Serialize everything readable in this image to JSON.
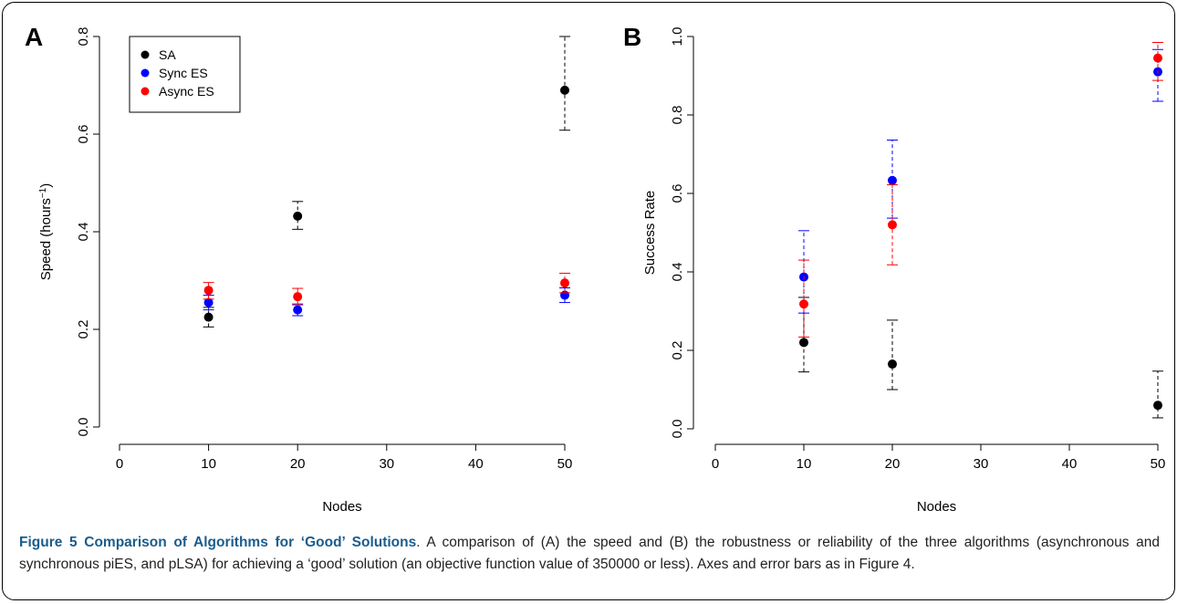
{
  "panels": {
    "a_label": "A",
    "b_label": "B"
  },
  "chart_data": [
    {
      "type": "scatter",
      "panel": "A",
      "xlabel": "Nodes",
      "ylabel_base": "Speed (hours",
      "ylabel_sup": "−1",
      "ylabel_end": ")",
      "xlim": [
        0,
        50
      ],
      "ylim": [
        0,
        0.8
      ],
      "xticks": [
        0,
        10,
        20,
        30,
        40,
        50
      ],
      "yticks": [
        0.0,
        0.2,
        0.4,
        0.6,
        0.8
      ],
      "xtick_labels": [
        "0",
        "10",
        "20",
        "30",
        "40",
        "50"
      ],
      "ytick_labels": [
        "0.0",
        "0.2",
        "0.4",
        "0.6",
        "0.8"
      ],
      "legend": {
        "placement": "top-left",
        "entries": [
          "SA",
          "Sync ES",
          "Async ES"
        ]
      },
      "series": [
        {
          "name": "SA",
          "color": "#000000",
          "points": [
            {
              "x": 10,
              "y": 0.225,
              "lo": 0.205,
              "hi": 0.245
            },
            {
              "x": 20,
              "y": 0.432,
              "lo": 0.405,
              "hi": 0.462
            },
            {
              "x": 50,
              "y": 0.69,
              "lo": 0.608,
              "hi": 0.8
            }
          ]
        },
        {
          "name": "Sync ES",
          "color": "#0000ff",
          "points": [
            {
              "x": 10,
              "y": 0.255,
              "lo": 0.24,
              "hi": 0.27
            },
            {
              "x": 20,
              "y": 0.24,
              "lo": 0.228,
              "hi": 0.252
            },
            {
              "x": 50,
              "y": 0.27,
              "lo": 0.255,
              "hi": 0.285
            }
          ]
        },
        {
          "name": "Async ES",
          "color": "#ff0000",
          "points": [
            {
              "x": 10,
              "y": 0.28,
              "lo": 0.262,
              "hi": 0.296
            },
            {
              "x": 20,
              "y": 0.267,
              "lo": 0.25,
              "hi": 0.284
            },
            {
              "x": 50,
              "y": 0.295,
              "lo": 0.275,
              "hi": 0.315
            }
          ]
        }
      ]
    },
    {
      "type": "scatter",
      "panel": "B",
      "xlabel": "Nodes",
      "ylabel": "Success Rate",
      "xlim": [
        0,
        50
      ],
      "ylim": [
        0,
        1.0
      ],
      "xticks": [
        0,
        10,
        20,
        30,
        40,
        50
      ],
      "yticks": [
        0.0,
        0.2,
        0.4,
        0.6,
        0.8,
        1.0
      ],
      "xtick_labels": [
        "0",
        "10",
        "20",
        "30",
        "40",
        "50"
      ],
      "ytick_labels": [
        "0.0",
        "0.2",
        "0.4",
        "0.6",
        "0.8",
        "1.0"
      ],
      "series": [
        {
          "name": "SA",
          "color": "#000000",
          "points": [
            {
              "x": 10,
              "y": 0.22,
              "lo": 0.145,
              "hi": 0.335
            },
            {
              "x": 20,
              "y": 0.165,
              "lo": 0.1,
              "hi": 0.277
            },
            {
              "x": 50,
              "y": 0.06,
              "lo": 0.028,
              "hi": 0.147
            }
          ]
        },
        {
          "name": "Sync ES",
          "color": "#0000ff",
          "points": [
            {
              "x": 10,
              "y": 0.387,
              "lo": 0.295,
              "hi": 0.505
            },
            {
              "x": 20,
              "y": 0.633,
              "lo": 0.537,
              "hi": 0.736
            },
            {
              "x": 50,
              "y": 0.91,
              "lo": 0.835,
              "hi": 0.967
            }
          ]
        },
        {
          "name": "Async ES",
          "color": "#ff0000",
          "points": [
            {
              "x": 10,
              "y": 0.318,
              "lo": 0.234,
              "hi": 0.43
            },
            {
              "x": 20,
              "y": 0.52,
              "lo": 0.418,
              "hi": 0.622
            },
            {
              "x": 50,
              "y": 0.945,
              "lo": 0.888,
              "hi": 0.985
            }
          ]
        }
      ]
    }
  ],
  "caption": {
    "title": "Figure 5 Comparison of Algorithms for ‘Good’ Solutions",
    "body": ". A comparison of (A) the speed and (B) the robustness or reliability of the three algorithms (asynchronous and synchronous piES, and pLSA) for achieving a ‘good’ solution (an objective function value of 350000 or less). Axes and error bars as in Figure 4."
  }
}
